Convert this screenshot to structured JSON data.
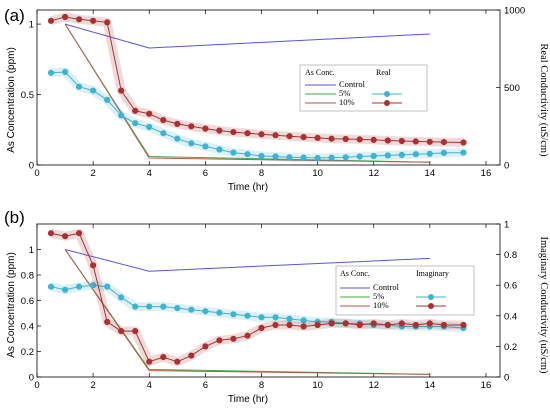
{
  "chart_data": [
    {
      "type": "line",
      "panel_label": "(a)",
      "xlabel": "Time (hr)",
      "ylabel": "As Concentration (ppm)",
      "y2label": "Real Conductivity (uS/cm)",
      "xlim": [
        0,
        16.5
      ],
      "ylim": [
        0,
        1.1
      ],
      "y2lim": [
        0,
        1000
      ],
      "x_ticks": [
        0,
        2,
        4,
        6,
        8,
        10,
        12,
        14,
        16
      ],
      "y_ticks": [
        0,
        0.5,
        1
      ],
      "y2_ticks": [
        0,
        500,
        1000
      ],
      "legend": {
        "head_left": "As Conc.",
        "head_right": "Real",
        "entries": [
          "Control",
          "5%",
          "10%"
        ],
        "placement": "center"
      },
      "series": [
        {
          "name": "Control",
          "axis": "left",
          "color": "#5555dd",
          "marker": false,
          "x": [
            1,
            4,
            14
          ],
          "y": [
            1.0,
            0.83,
            0.93
          ]
        },
        {
          "name": "5%",
          "axis": "left",
          "color": "#44aa44",
          "marker": false,
          "x": [
            1,
            4,
            14
          ],
          "y": [
            1.0,
            0.06,
            0.02
          ]
        },
        {
          "name": "10%",
          "axis": "left",
          "color": "#b25a4a",
          "marker": false,
          "x": [
            1,
            4,
            14
          ],
          "y": [
            1.0,
            0.05,
            0.02
          ]
        },
        {
          "name": "5%",
          "axis": "right",
          "color": "#3fb3cf",
          "marker": true,
          "x": [
            0.5,
            1,
            1.5,
            2,
            2.5,
            3,
            3.5,
            4,
            4.5,
            5,
            5.5,
            6,
            6.5,
            7,
            7.5,
            8,
            8.5,
            9,
            9.5,
            10,
            10.5,
            11,
            11.5,
            12,
            12.5,
            13,
            13.5,
            14,
            14.5,
            15.2
          ],
          "y": [
            595,
            600,
            505,
            480,
            420,
            320,
            270,
            245,
            205,
            170,
            140,
            120,
            100,
            80,
            70,
            58,
            55,
            50,
            48,
            45,
            48,
            50,
            55,
            58,
            62,
            65,
            70,
            72,
            78,
            80
          ]
        },
        {
          "name": "10%",
          "axis": "right",
          "color": "#a83232",
          "marker": true,
          "x": [
            0.5,
            1,
            1.5,
            2,
            2.5,
            3,
            3.5,
            4,
            4.5,
            5,
            5.5,
            6,
            6.5,
            7,
            7.5,
            8,
            8.5,
            9,
            9.5,
            10,
            10.5,
            11,
            11.5,
            12,
            12.5,
            13,
            13.5,
            14,
            14.5,
            15.2
          ],
          "y": [
            930,
            955,
            940,
            930,
            920,
            480,
            350,
            330,
            290,
            265,
            250,
            235,
            222,
            212,
            205,
            198,
            192,
            186,
            180,
            175,
            170,
            168,
            165,
            162,
            158,
            155,
            152,
            150,
            148,
            145
          ]
        }
      ]
    },
    {
      "type": "line",
      "panel_label": "(b)",
      "xlabel": "Time (hr)",
      "ylabel": "As Concentration (ppm)",
      "y2label": "Imaginary Conductivity (uS/cm)",
      "xlim": [
        0,
        16.5
      ],
      "ylim": [
        0,
        1.2
      ],
      "y2lim": [
        0,
        1.0
      ],
      "x_ticks": [
        0,
        2,
        4,
        6,
        8,
        10,
        12,
        14,
        16
      ],
      "y_ticks": [
        0,
        0.2,
        0.4,
        0.6,
        0.8,
        1
      ],
      "y2_ticks": [
        0,
        0.2,
        0.4,
        0.6,
        0.8,
        1
      ],
      "legend": {
        "head_left": "As Conc.",
        "head_right": "Imaginary",
        "entries": [
          "Control",
          "5%",
          "10%"
        ],
        "placement": "center-right"
      },
      "series": [
        {
          "name": "Control",
          "axis": "left",
          "color": "#5555dd",
          "marker": false,
          "x": [
            1,
            4,
            14
          ],
          "y": [
            1.0,
            0.83,
            0.93
          ]
        },
        {
          "name": "5%",
          "axis": "left",
          "color": "#44aa44",
          "marker": false,
          "x": [
            1,
            4,
            14
          ],
          "y": [
            1.0,
            0.06,
            0.02
          ]
        },
        {
          "name": "10%",
          "axis": "left",
          "color": "#b25a4a",
          "marker": false,
          "x": [
            1,
            4,
            14
          ],
          "y": [
            1.0,
            0.05,
            0.02
          ]
        },
        {
          "name": "5%",
          "axis": "right",
          "color": "#3fb3cf",
          "marker": true,
          "x": [
            0.5,
            1,
            1.5,
            2,
            2.5,
            3,
            3.5,
            4,
            4.5,
            5,
            5.5,
            6,
            6.5,
            7,
            7.5,
            8,
            8.5,
            9,
            9.5,
            10,
            10.5,
            11,
            11.5,
            12,
            12.5,
            13,
            13.5,
            14,
            14.5,
            15.2
          ],
          "y": [
            0.59,
            0.57,
            0.59,
            0.6,
            0.59,
            0.52,
            0.46,
            0.46,
            0.46,
            0.45,
            0.44,
            0.43,
            0.42,
            0.41,
            0.4,
            0.39,
            0.39,
            0.38,
            0.37,
            0.36,
            0.36,
            0.35,
            0.35,
            0.34,
            0.34,
            0.33,
            0.33,
            0.33,
            0.33,
            0.32
          ]
        },
        {
          "name": "10%",
          "axis": "right",
          "color": "#a83232",
          "marker": true,
          "x": [
            0.5,
            1,
            1.5,
            2,
            2.5,
            3,
            3.5,
            4,
            4.5,
            5,
            5.5,
            6,
            6.5,
            7,
            7.5,
            8,
            8.5,
            9,
            9.5,
            10,
            10.5,
            11,
            11.5,
            12,
            12.5,
            13,
            13.5,
            14,
            14.5,
            15.2
          ],
          "y": [
            0.94,
            0.92,
            0.94,
            0.73,
            0.36,
            0.3,
            0.3,
            0.1,
            0.13,
            0.1,
            0.14,
            0.2,
            0.24,
            0.25,
            0.27,
            0.32,
            0.34,
            0.34,
            0.33,
            0.34,
            0.35,
            0.35,
            0.34,
            0.35,
            0.34,
            0.35,
            0.34,
            0.35,
            0.34,
            0.34
          ]
        }
      ]
    }
  ]
}
